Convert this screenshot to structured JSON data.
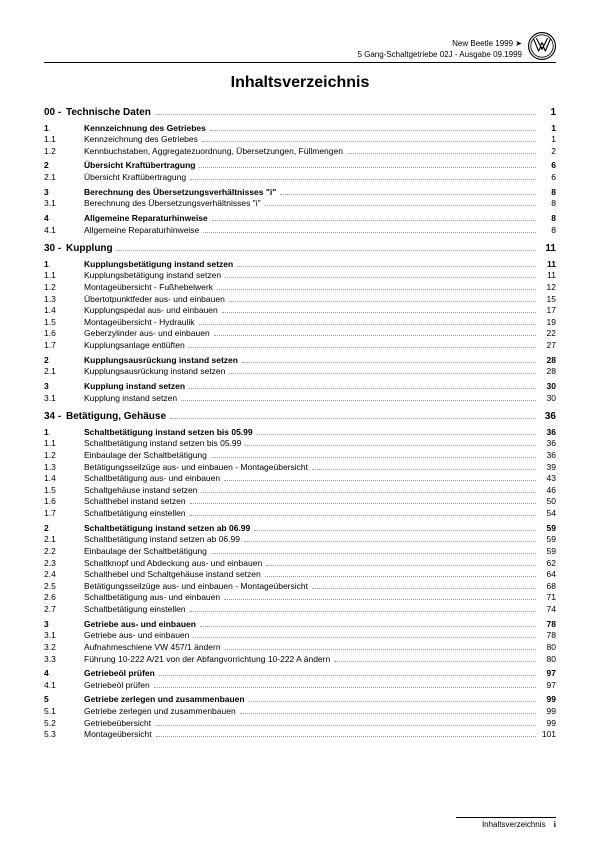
{
  "header": {
    "line1": "New Beetle 1999 ➤",
    "line2": "5 Gang-Schaltgetriebe 02J - Ausgabe 09.1999"
  },
  "title": "Inhaltsverzeichnis",
  "chapters": [
    {
      "num": "00 -",
      "title": "Technische Daten",
      "page": "1",
      "rows": [
        {
          "n": "1",
          "t": "Kennzeichnung des Getriebes",
          "p": "1",
          "b": true
        },
        {
          "n": "1.1",
          "t": "Kennzeichnung des Getriebes",
          "p": "1"
        },
        {
          "n": "1.2",
          "t": "Kennbuchstaben, Aggregatezuordnung, Übersetzungen, Füllmengen",
          "p": "2"
        },
        {
          "n": "2",
          "t": "Übersicht Kraftübertragung",
          "p": "6",
          "b": true,
          "sp": true
        },
        {
          "n": "2.1",
          "t": "Übersicht Kraftübertragung",
          "p": "6"
        },
        {
          "n": "3",
          "t": "Berechnung des Übersetzungsverhältnisses \"i\"",
          "p": "8",
          "b": true,
          "sp": true
        },
        {
          "n": "3.1",
          "t": "Berechnung des Übersetzungsverhältnisses \"i\"",
          "p": "8"
        },
        {
          "n": "4",
          "t": "Allgemeine Reparaturhinweise",
          "p": "8",
          "b": true,
          "sp": true
        },
        {
          "n": "4.1",
          "t": "Allgemeine Reparaturhinweise",
          "p": "8"
        }
      ]
    },
    {
      "num": "30 -",
      "title": "Kupplung",
      "page": "11",
      "rows": [
        {
          "n": "1",
          "t": "Kupplungsbetätigung instand setzen",
          "p": "11",
          "b": true
        },
        {
          "n": "1.1",
          "t": "Kupplungsbetätigung instand setzen",
          "p": "11"
        },
        {
          "n": "1.2",
          "t": "Montageübersicht - Fußhebelwerk",
          "p": "12"
        },
        {
          "n": "1.3",
          "t": "Übertotpunktfeder aus- und einbauen",
          "p": "15"
        },
        {
          "n": "1.4",
          "t": "Kupplungspedal aus- und einbauen",
          "p": "17"
        },
        {
          "n": "1.5",
          "t": "Montageübersicht - Hydraulik",
          "p": "19"
        },
        {
          "n": "1.6",
          "t": "Geberzylinder aus- und einbauen",
          "p": "22"
        },
        {
          "n": "1.7",
          "t": "Kupplungsanlage entlüften",
          "p": "27"
        },
        {
          "n": "2",
          "t": "Kupplungsausrückung instand setzen",
          "p": "28",
          "b": true,
          "sp": true
        },
        {
          "n": "2.1",
          "t": "Kupplungsausrückung instand setzen",
          "p": "28"
        },
        {
          "n": "3",
          "t": "Kupplung instand setzen",
          "p": "30",
          "b": true,
          "sp": true
        },
        {
          "n": "3.1",
          "t": "Kupplung instand setzen",
          "p": "30"
        }
      ]
    },
    {
      "num": "34 -",
      "title": "Betätigung, Gehäuse",
      "page": "36",
      "rows": [
        {
          "n": "1",
          "t": "Schaltbetätigung instand setzen bis 05.99",
          "p": "36",
          "b": true
        },
        {
          "n": "1.1",
          "t": "Schaltbetätigung instand setzen bis 05.99",
          "p": "36"
        },
        {
          "n": "1.2",
          "t": "Einbaulage der Schaltbetätigung",
          "p": "36"
        },
        {
          "n": "1.3",
          "t": "Betätigungsseilzüge aus- und einbauen - Montageübersicht",
          "p": "39"
        },
        {
          "n": "1.4",
          "t": "Schaltbetätigung aus- und einbauen",
          "p": "43"
        },
        {
          "n": "1.5",
          "t": "Schaltgehäuse instand setzen",
          "p": "46"
        },
        {
          "n": "1.6",
          "t": "Schalthebel instand setzen",
          "p": "50"
        },
        {
          "n": "1.7",
          "t": "Schaltbetätigung einstellen",
          "p": "54"
        },
        {
          "n": "2",
          "t": "Schaltbetätigung instand setzen ab 06.99",
          "p": "59",
          "b": true,
          "sp": true
        },
        {
          "n": "2.1",
          "t": "Schaltbetätigung instand setzen ab 06.99",
          "p": "59"
        },
        {
          "n": "2.2",
          "t": "Einbaulage der Schaltbetätigung",
          "p": "59"
        },
        {
          "n": "2.3",
          "t": "Schaltknopf und Abdeckung aus- und einbauen",
          "p": "62"
        },
        {
          "n": "2.4",
          "t": "Schalthebel und Schaltgehäuse instand setzen",
          "p": "64"
        },
        {
          "n": "2.5",
          "t": "Betätigungsseilzüge aus- und einbauen - Montageübersicht",
          "p": "68"
        },
        {
          "n": "2.6",
          "t": "Schaltbetätigung aus- und einbauen",
          "p": "71"
        },
        {
          "n": "2.7",
          "t": "Schaltbetätigung einstellen",
          "p": "74"
        },
        {
          "n": "3",
          "t": "Getriebe aus- und einbauen",
          "p": "78",
          "b": true,
          "sp": true
        },
        {
          "n": "3.1",
          "t": "Getriebe aus- und einbauen",
          "p": "78"
        },
        {
          "n": "3.2",
          "t": "Aufnahmeschiene VW 457/1 ändern",
          "p": "80"
        },
        {
          "n": "3.3",
          "t": "Führung 10-222 A/21 von der Abfangvorrichtung 10-222 A ändern",
          "p": "80"
        },
        {
          "n": "4",
          "t": "Getriebeöl prüfen",
          "p": "97",
          "b": true,
          "sp": true
        },
        {
          "n": "4.1",
          "t": "Getriebeöl prüfen",
          "p": "97"
        },
        {
          "n": "5",
          "t": "Getriebe zerlegen und zusammenbauen",
          "p": "99",
          "b": true,
          "sp": true
        },
        {
          "n": "5.1",
          "t": "Getriebe zerlegen und zusammenbauen",
          "p": "99"
        },
        {
          "n": "5.2",
          "t": "Getriebeübersicht",
          "p": "99"
        },
        {
          "n": "5.3",
          "t": "Montageübersicht",
          "p": "101"
        }
      ]
    }
  ],
  "footer": {
    "label": "Inhaltsverzeichnis",
    "page": "i"
  }
}
